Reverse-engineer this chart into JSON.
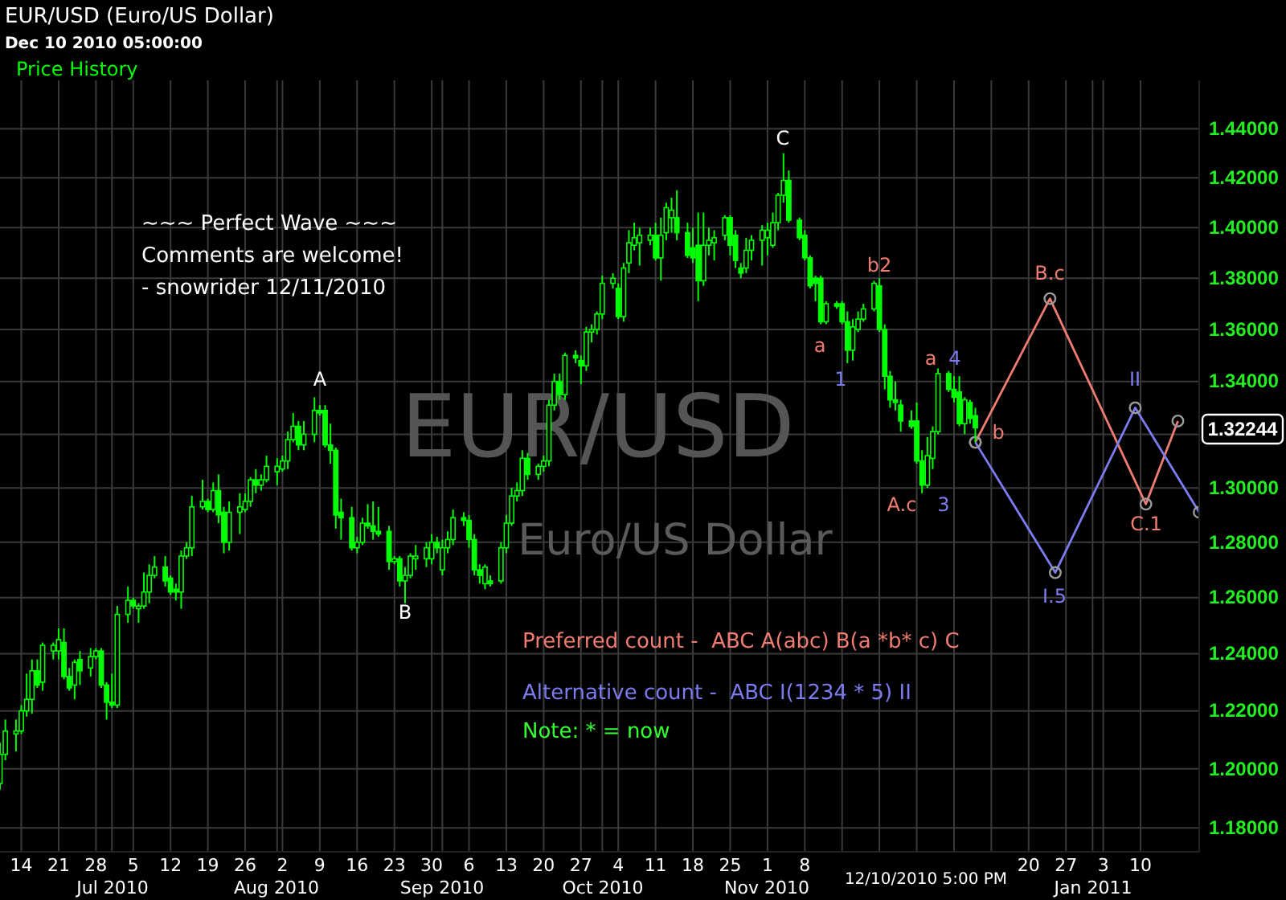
{
  "chart_data": {
    "type": "candlestick",
    "title": "EUR/USD (Euro/US Dollar)",
    "subtitle": "Dec 10 2010 05:00:00",
    "log": true,
    "grid": true,
    "marker": "circle",
    "xlim": [
      "2010-06-10",
      "2011-01-21"
    ],
    "xticks": [
      {
        "value": "2010-06-14",
        "label": "14"
      },
      {
        "value": "2010-06-21",
        "label": "21"
      },
      {
        "value": "2010-06-28",
        "label": "28"
      },
      {
        "value": "2010-07-01",
        "label": null
      },
      {
        "value": "2010-07-05",
        "label": "5"
      },
      {
        "value": "2010-07-12",
        "label": "12"
      },
      {
        "value": "2010-07-19",
        "label": "19"
      },
      {
        "value": "2010-07-26",
        "label": "26"
      },
      {
        "value": "2010-08-01",
        "label": null
      },
      {
        "value": "2010-08-02",
        "label": "2"
      },
      {
        "value": "2010-08-09",
        "label": "9"
      },
      {
        "value": "2010-08-16",
        "label": "16"
      },
      {
        "value": "2010-08-23",
        "label": "23"
      },
      {
        "value": "2010-08-30",
        "label": "30"
      },
      {
        "value": "2010-09-01",
        "label": null
      },
      {
        "value": "2010-09-06",
        "label": "6"
      },
      {
        "value": "2010-09-13",
        "label": "13"
      },
      {
        "value": "2010-09-20",
        "label": "20"
      },
      {
        "value": "2010-09-27",
        "label": "27"
      },
      {
        "value": "2010-10-01",
        "label": null
      },
      {
        "value": "2010-10-04",
        "label": "4"
      },
      {
        "value": "2010-10-11",
        "label": "11"
      },
      {
        "value": "2010-10-18",
        "label": "18"
      },
      {
        "value": "2010-10-25",
        "label": "25"
      },
      {
        "value": "2010-11-01",
        "label": "1"
      },
      {
        "value": "2010-11-08",
        "label": "8"
      },
      {
        "value": "2010-11-15",
        "label": null
      },
      {
        "value": "2010-11-22",
        "label": null
      },
      {
        "value": "2010-11-29",
        "label": null
      },
      {
        "value": "2010-12-06",
        "label": null
      },
      {
        "value": "2010-12-13",
        "label": null
      },
      {
        "value": "2010-12-20",
        "label": "20"
      },
      {
        "value": "2010-12-27",
        "label": "27"
      },
      {
        "value": "2011-01-01",
        "label": null
      },
      {
        "value": "2011-01-03",
        "label": "3"
      },
      {
        "value": "2011-01-10",
        "label": "10"
      }
    ],
    "ylim": [
      1.172,
      1.46
    ],
    "yticks": [
      {
        "value": 1.18,
        "label": "1.18000"
      },
      {
        "value": 1.2,
        "label": "1.20000"
      },
      {
        "value": 1.22,
        "label": "1.22000"
      },
      {
        "value": 1.24,
        "label": "1.24000"
      },
      {
        "value": 1.26,
        "label": "1.26000"
      },
      {
        "value": 1.28,
        "label": "1.28000"
      },
      {
        "value": 1.3,
        "label": "1.30000"
      },
      {
        "value": 1.32,
        "label": null
      },
      {
        "value": 1.34,
        "label": "1.34000"
      },
      {
        "value": 1.36,
        "label": "1.36000"
      },
      {
        "value": 1.38,
        "label": "1.38000"
      },
      {
        "value": 1.4,
        "label": "1.40000"
      },
      {
        "value": 1.42,
        "label": "1.42000"
      },
      {
        "value": 1.44,
        "label": "1.44000"
      }
    ],
    "series": [
      {
        "name": "Price History",
        "color": "#00ff00",
        "x": [
          "2010-06-10",
          "2010-06-11",
          "2010-06-13",
          "2010-06-14",
          "2010-06-15",
          "2010-06-16",
          "2010-06-17",
          "2010-06-18",
          "2010-06-20",
          "2010-06-21",
          "2010-06-22",
          "2010-06-23",
          "2010-06-24",
          "2010-06-25",
          "2010-06-27",
          "2010-06-28",
          "2010-06-29",
          "2010-06-30",
          "2010-07-01",
          "2010-07-02",
          "2010-07-04",
          "2010-07-05",
          "2010-07-06",
          "2010-07-07",
          "2010-07-08",
          "2010-07-09",
          "2010-07-11",
          "2010-07-12",
          "2010-07-13",
          "2010-07-14",
          "2010-07-15",
          "2010-07-16",
          "2010-07-18",
          "2010-07-19",
          "2010-07-20",
          "2010-07-21",
          "2010-07-22",
          "2010-07-23",
          "2010-07-25",
          "2010-07-26",
          "2010-07-27",
          "2010-07-28",
          "2010-07-29",
          "2010-07-30",
          "2010-08-01",
          "2010-08-02",
          "2010-08-03",
          "2010-08-04",
          "2010-08-05",
          "2010-08-06",
          "2010-08-08",
          "2010-08-09",
          "2010-08-10",
          "2010-08-11",
          "2010-08-12",
          "2010-08-13",
          "2010-08-15",
          "2010-08-16",
          "2010-08-17",
          "2010-08-18",
          "2010-08-19",
          "2010-08-20",
          "2010-08-22",
          "2010-08-23",
          "2010-08-24",
          "2010-08-25",
          "2010-08-26",
          "2010-08-27",
          "2010-08-29",
          "2010-08-30",
          "2010-08-31",
          "2010-09-01",
          "2010-09-02",
          "2010-09-03",
          "2010-09-05",
          "2010-09-06",
          "2010-09-07",
          "2010-09-08",
          "2010-09-09",
          "2010-09-10",
          "2010-09-12",
          "2010-09-13",
          "2010-09-14",
          "2010-09-15",
          "2010-09-16",
          "2010-09-17",
          "2010-09-19",
          "2010-09-20",
          "2010-09-21",
          "2010-09-22",
          "2010-09-23",
          "2010-09-24",
          "2010-09-26",
          "2010-09-27",
          "2010-09-28",
          "2010-09-29",
          "2010-09-30",
          "2010-10-01",
          "2010-10-03",
          "2010-10-04",
          "2010-10-05",
          "2010-10-06",
          "2010-10-07",
          "2010-10-08",
          "2010-10-10",
          "2010-10-11",
          "2010-10-12",
          "2010-10-13",
          "2010-10-14",
          "2010-10-15",
          "2010-10-17",
          "2010-10-18",
          "2010-10-19",
          "2010-10-20",
          "2010-10-21",
          "2010-10-22",
          "2010-10-24",
          "2010-10-25",
          "2010-10-26",
          "2010-10-27",
          "2010-10-28",
          "2010-10-29",
          "2010-10-31",
          "2010-11-01",
          "2010-11-02",
          "2010-11-03",
          "2010-11-04",
          "2010-11-05",
          "2010-11-07",
          "2010-11-08",
          "2010-11-09",
          "2010-11-10",
          "2010-11-11",
          "2010-11-12",
          "2010-11-14",
          "2010-11-15",
          "2010-11-16",
          "2010-11-17",
          "2010-11-18",
          "2010-11-19",
          "2010-11-21",
          "2010-11-22",
          "2010-11-23",
          "2010-11-24",
          "2010-11-25",
          "2010-11-26",
          "2010-11-28",
          "2010-11-29",
          "2010-11-30",
          "2010-12-01",
          "2010-12-02",
          "2010-12-03",
          "2010-12-05",
          "2010-12-06",
          "2010-12-07",
          "2010-12-08",
          "2010-12-09",
          "2010-12-10"
        ],
        "ohlc": [
          [
            1.195,
            1.209,
            1.193,
            1.205
          ],
          [
            1.205,
            1.217,
            1.203,
            1.213
          ],
          [
            1.212,
            1.217,
            1.206,
            1.213
          ],
          [
            1.213,
            1.222,
            1.212,
            1.22
          ],
          [
            1.22,
            1.233,
            1.218,
            1.224
          ],
          [
            1.224,
            1.238,
            1.219,
            1.234
          ],
          [
            1.234,
            1.238,
            1.228,
            1.229
          ],
          [
            1.23,
            1.244,
            1.227,
            1.243
          ],
          [
            1.241,
            1.244,
            1.238,
            1.243
          ],
          [
            1.241,
            1.249,
            1.238,
            1.245
          ],
          [
            1.244,
            1.249,
            1.231,
            1.232
          ],
          [
            1.232,
            1.235,
            1.227,
            1.228
          ],
          [
            1.229,
            1.238,
            1.224,
            1.237
          ],
          [
            1.238,
            1.241,
            1.229,
            1.234
          ],
          [
            1.235,
            1.242,
            1.232,
            1.239
          ],
          [
            1.239,
            1.242,
            1.238,
            1.241
          ],
          [
            1.241,
            1.242,
            1.228,
            1.229
          ],
          [
            1.229,
            1.23,
            1.217,
            1.223
          ],
          [
            1.223,
            1.233,
            1.221,
            1.222
          ],
          [
            1.222,
            1.257,
            1.221,
            1.254
          ],
          [
            1.254,
            1.264,
            1.251,
            1.259
          ],
          [
            1.259,
            1.26,
            1.256,
            1.257
          ],
          [
            1.256,
            1.258,
            1.251,
            1.257
          ],
          [
            1.257,
            1.269,
            1.256,
            1.262
          ],
          [
            1.262,
            1.272,
            1.258,
            1.268
          ],
          [
            1.268,
            1.275,
            1.267,
            1.271
          ],
          [
            1.271,
            1.275,
            1.264,
            1.266
          ],
          [
            1.267,
            1.268,
            1.261,
            1.262
          ],
          [
            1.263,
            1.265,
            1.259,
            1.262
          ],
          [
            1.262,
            1.277,
            1.256,
            1.275
          ],
          [
            1.275,
            1.28,
            1.274,
            1.278
          ],
          [
            1.278,
            1.297,
            1.275,
            1.293
          ],
          [
            1.293,
            1.303,
            1.292,
            1.295
          ],
          [
            1.295,
            1.296,
            1.291,
            1.292
          ],
          [
            1.292,
            1.302,
            1.291,
            1.299
          ],
          [
            1.299,
            1.305,
            1.287,
            1.29
          ],
          [
            1.291,
            1.293,
            1.276,
            1.28
          ],
          [
            1.28,
            1.295,
            1.277,
            1.291
          ],
          [
            1.291,
            1.298,
            1.283,
            1.293
          ],
          [
            1.292,
            1.298,
            1.291,
            1.295
          ],
          [
            1.295,
            1.304,
            1.293,
            1.303
          ],
          [
            1.303,
            1.307,
            1.298,
            1.301
          ],
          [
            1.301,
            1.305,
            1.299,
            1.303
          ],
          [
            1.303,
            1.312,
            1.302,
            1.308
          ],
          [
            1.306,
            1.311,
            1.301,
            1.308
          ],
          [
            1.307,
            1.312,
            1.306,
            1.31
          ],
          [
            1.31,
            1.321,
            1.307,
            1.318
          ],
          [
            1.318,
            1.328,
            1.317,
            1.323
          ],
          [
            1.323,
            1.325,
            1.314,
            1.316
          ],
          [
            1.316,
            1.325,
            1.314,
            1.32
          ],
          [
            1.32,
            1.334,
            1.317,
            1.329
          ],
          [
            1.329,
            1.331,
            1.327,
            1.328
          ],
          [
            1.329,
            1.331,
            1.315,
            1.316
          ],
          [
            1.316,
            1.324,
            1.309,
            1.314
          ],
          [
            1.314,
            1.315,
            1.285,
            1.29
          ],
          [
            1.291,
            1.296,
            1.281,
            1.289
          ],
          [
            1.289,
            1.293,
            1.277,
            1.278
          ],
          [
            1.278,
            1.282,
            1.276,
            1.28
          ],
          [
            1.28,
            1.289,
            1.279,
            1.287
          ],
          [
            1.287,
            1.294,
            1.285,
            1.286
          ],
          [
            1.286,
            1.295,
            1.281,
            1.284
          ],
          [
            1.284,
            1.293,
            1.282,
            1.283
          ],
          [
            1.284,
            1.286,
            1.27,
            1.273
          ],
          [
            1.273,
            1.275,
            1.272,
            1.274
          ],
          [
            1.274,
            1.275,
            1.264,
            1.266
          ],
          [
            1.266,
            1.271,
            1.258,
            1.268
          ],
          [
            1.268,
            1.276,
            1.267,
            1.275
          ],
          [
            1.274,
            1.279,
            1.27,
            1.275
          ],
          [
            1.274,
            1.28,
            1.271,
            1.278
          ],
          [
            1.274,
            1.283,
            1.272,
            1.28
          ],
          [
            1.28,
            1.282,
            1.276,
            1.278
          ],
          [
            1.27,
            1.281,
            1.268,
            1.278
          ],
          [
            1.278,
            1.284,
            1.276,
            1.281
          ],
          [
            1.281,
            1.292,
            1.279,
            1.289
          ],
          [
            1.289,
            1.291,
            1.286,
            1.288
          ],
          [
            1.288,
            1.29,
            1.278,
            1.281
          ],
          [
            1.281,
            1.283,
            1.268,
            1.27
          ],
          [
            1.27,
            1.272,
            1.265,
            1.268
          ],
          [
            1.265,
            1.272,
            1.263,
            1.271
          ],
          [
            1.266,
            1.268,
            1.264,
            1.265
          ],
          [
            1.266,
            1.28,
            1.265,
            1.278
          ],
          [
            1.278,
            1.29,
            1.276,
            1.287
          ],
          [
            1.287,
            1.3,
            1.286,
            1.297
          ],
          [
            1.297,
            1.302,
            1.295,
            1.299
          ],
          [
            1.299,
            1.314,
            1.297,
            1.311
          ],
          [
            1.311,
            1.313,
            1.303,
            1.305
          ],
          [
            1.305,
            1.309,
            1.303,
            1.308
          ],
          [
            1.308,
            1.312,
            1.306,
            1.31
          ],
          [
            1.31,
            1.333,
            1.308,
            1.331
          ],
          [
            1.331,
            1.343,
            1.329,
            1.34
          ],
          [
            1.34,
            1.343,
            1.333,
            1.335
          ],
          [
            1.335,
            1.351,
            1.333,
            1.35
          ],
          [
            1.35,
            1.352,
            1.347,
            1.349
          ],
          [
            1.348,
            1.35,
            1.339,
            1.346
          ],
          [
            1.346,
            1.361,
            1.344,
            1.359
          ],
          [
            1.359,
            1.362,
            1.355,
            1.36
          ],
          [
            1.36,
            1.367,
            1.358,
            1.366
          ],
          [
            1.366,
            1.381,
            1.364,
            1.378
          ],
          [
            1.378,
            1.382,
            1.376,
            1.38
          ],
          [
            1.376,
            1.378,
            1.364,
            1.365
          ],
          [
            1.365,
            1.386,
            1.363,
            1.384
          ],
          [
            1.386,
            1.399,
            1.382,
            1.394
          ],
          [
            1.393,
            1.402,
            1.391,
            1.396
          ],
          [
            1.394,
            1.4,
            1.385,
            1.397
          ],
          [
            1.395,
            1.4,
            1.393,
            1.397
          ],
          [
            1.397,
            1.402,
            1.387,
            1.388
          ],
          [
            1.388,
            1.404,
            1.379,
            1.397
          ],
          [
            1.398,
            1.41,
            1.395,
            1.408
          ],
          [
            1.404,
            1.412,
            1.398,
            1.407
          ],
          [
            1.404,
            1.415,
            1.395,
            1.398
          ],
          [
            1.398,
            1.402,
            1.388,
            1.389
          ],
          [
            1.392,
            1.4,
            1.386,
            1.388
          ],
          [
            1.393,
            1.406,
            1.371,
            1.379
          ],
          [
            1.379,
            1.406,
            1.377,
            1.393
          ],
          [
            1.393,
            1.4,
            1.389,
            1.395
          ],
          [
            1.394,
            1.399,
            1.387,
            1.396
          ],
          [
            1.397,
            1.405,
            1.395,
            1.404
          ],
          [
            1.404,
            1.405,
            1.389,
            1.393
          ],
          [
            1.397,
            1.399,
            1.384,
            1.387
          ],
          [
            1.384,
            1.386,
            1.38,
            1.382
          ],
          [
            1.384,
            1.396,
            1.382,
            1.391
          ],
          [
            1.391,
            1.397,
            1.387,
            1.395
          ],
          [
            1.395,
            1.401,
            1.385,
            1.399
          ],
          [
            1.396,
            1.402,
            1.389,
            1.399
          ],
          [
            1.393,
            1.406,
            1.392,
            1.402
          ],
          [
            1.402,
            1.414,
            1.399,
            1.413
          ],
          [
            1.413,
            1.43,
            1.41,
            1.419
          ],
          [
            1.419,
            1.423,
            1.402,
            1.403
          ],
          [
            1.403,
            1.404,
            1.395,
            1.396
          ],
          [
            1.397,
            1.399,
            1.387,
            1.388
          ],
          [
            1.388,
            1.389,
            1.376,
            1.377
          ],
          [
            1.38,
            1.381,
            1.371,
            1.378
          ],
          [
            1.38,
            1.381,
            1.362,
            1.363
          ],
          [
            1.363,
            1.371,
            1.362,
            1.37
          ],
          [
            1.37,
            1.371,
            1.368,
            1.369
          ],
          [
            1.37,
            1.371,
            1.362,
            1.363
          ],
          [
            1.363,
            1.367,
            1.347,
            1.352
          ],
          [
            1.352,
            1.364,
            1.348,
            1.361
          ],
          [
            1.36,
            1.367,
            1.359,
            1.364
          ],
          [
            1.364,
            1.37,
            1.363,
            1.368
          ],
          [
            1.368,
            1.379,
            1.367,
            1.378
          ],
          [
            1.377,
            1.38,
            1.359,
            1.36
          ],
          [
            1.36,
            1.362,
            1.337,
            1.342
          ],
          [
            1.342,
            1.344,
            1.33,
            1.333
          ],
          [
            1.333,
            1.34,
            1.329,
            1.332
          ],
          [
            1.331,
            1.333,
            1.321,
            1.325
          ],
          [
            1.325,
            1.329,
            1.322,
            1.323
          ],
          [
            1.325,
            1.332,
            1.309,
            1.31
          ],
          [
            1.31,
            1.314,
            1.298,
            1.301
          ],
          [
            1.301,
            1.319,
            1.3,
            1.312
          ],
          [
            1.311,
            1.323,
            1.307,
            1.321
          ],
          [
            1.321,
            1.345,
            1.32,
            1.343
          ],
          [
            1.343,
            1.344,
            1.336,
            1.337
          ],
          [
            1.337,
            1.342,
            1.332,
            1.334
          ],
          [
            1.336,
            1.342,
            1.323,
            1.324
          ],
          [
            1.324,
            1.334,
            1.32,
            1.333
          ],
          [
            1.332,
            1.333,
            1.324,
            1.326
          ],
          [
            1.327,
            1.33,
            1.317,
            1.32244
          ]
        ]
      },
      {
        "type": "line",
        "name": "Preferred count -  ABC A(abc) B(a *b* c) C",
        "color": "#f07c72",
        "x": [
          "2010-12-10",
          "2010-12-24",
          "2011-01-11",
          "2011-01-17"
        ],
        "values": [
          1.317,
          1.372,
          1.294,
          1.325
        ]
      },
      {
        "type": "line",
        "name": "Alternative count -  ABC I(1234 * 5) II",
        "color": "#7c7cf0",
        "x": [
          "2010-12-10",
          "2010-12-25",
          "2011-01-09",
          "2011-01-21"
        ],
        "values": [
          1.317,
          1.269,
          1.33,
          1.291
        ]
      }
    ],
    "annotations": [
      "~~~ Perfect Wave ~~~",
      "Comments are welcome!",
      "- snowrider  12/11/2010",
      "Note:  * = now",
      "EUR/USD",
      "Euro/US Dollar",
      "12/10/2010 5:00 PM",
      "1.32244",
      "Jul 2010",
      "Aug 2010",
      "Sep 2010",
      "Oct 2010",
      "Nov 2010",
      "Jan 2011",
      "A",
      "B",
      "C",
      "a",
      "1",
      "b2",
      "A.c",
      "3",
      "a",
      "4",
      "b",
      "B.c",
      "C.1",
      "I.5",
      "II"
    ]
  }
}
